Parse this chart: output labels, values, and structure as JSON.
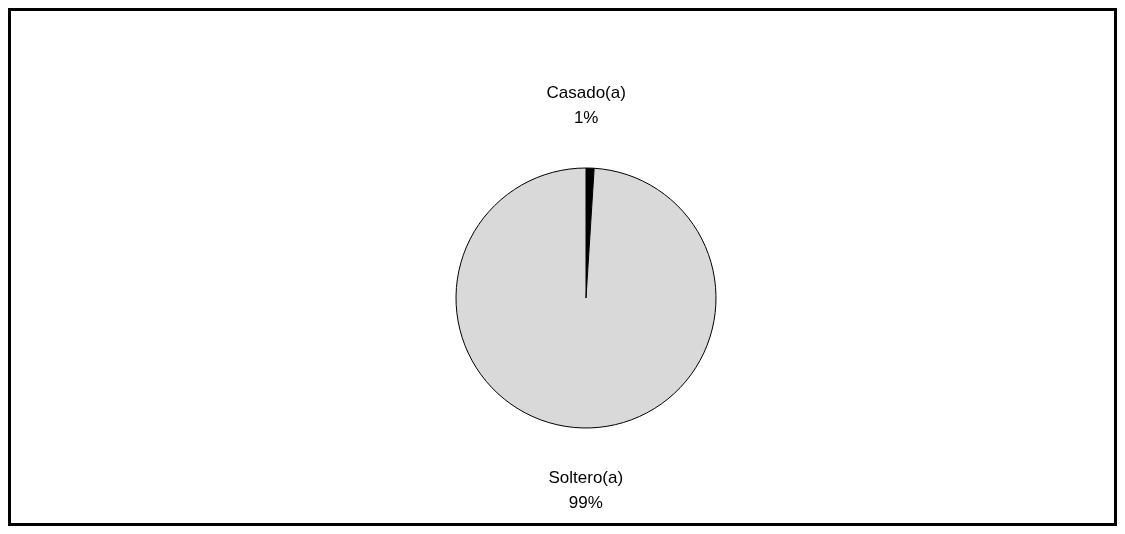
{
  "chart_data": {
    "type": "pie",
    "categories": [
      "Casado(a)",
      "Soltero(a)"
    ],
    "values": [
      1,
      99
    ],
    "value_labels": [
      "1%",
      "99%"
    ],
    "colors": [
      "#000000",
      "#d9d9d9"
    ],
    "legend": false
  }
}
